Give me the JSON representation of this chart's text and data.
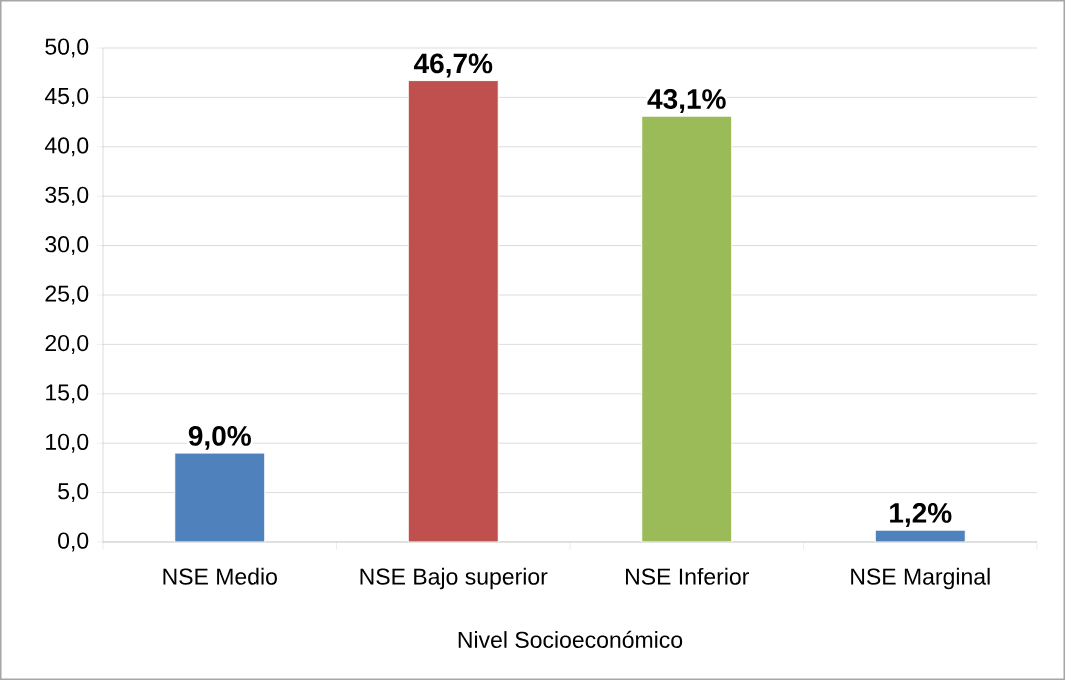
{
  "chart_data": {
    "type": "bar",
    "xlabel": "Nivel Socioeconómico",
    "categories": [
      "NSE Medio",
      "NSE Bajo superior",
      "NSE Inferior",
      "NSE Marginal"
    ],
    "values": [
      9.0,
      46.7,
      43.1,
      1.2
    ],
    "colors": [
      "#4f81bd",
      "#c0504d",
      "#9bbb59",
      "#4f81bd"
    ],
    "value_labels": [
      "9,0%",
      "46,7%",
      "43,1%",
      "1,2%"
    ],
    "ylim": [
      0,
      50
    ],
    "yticks": [
      {
        "value": 0,
        "label": "0,0"
      },
      {
        "value": 5,
        "label": "5,0"
      },
      {
        "value": 10,
        "label": "10,0"
      },
      {
        "value": 15,
        "label": "15,0"
      },
      {
        "value": 20,
        "label": "20,0"
      },
      {
        "value": 25,
        "label": "25,0"
      },
      {
        "value": 30,
        "label": "30,0"
      },
      {
        "value": 35,
        "label": "35,0"
      },
      {
        "value": 40,
        "label": "40,0"
      },
      {
        "value": 45,
        "label": "45,0"
      },
      {
        "value": 50,
        "label": "50,0"
      }
    ],
    "grid": "y"
  }
}
